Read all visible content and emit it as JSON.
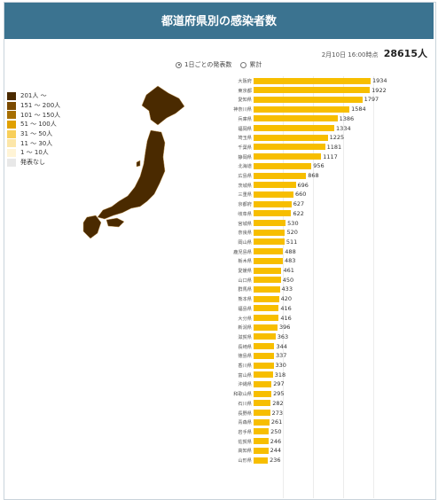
{
  "header": {
    "title": "都道府県別の感染者数"
  },
  "total": {
    "timestamp": "2月10日 16:00時点",
    "value": "28615人"
  },
  "radios": [
    {
      "label": "1日ごとの発表数",
      "selected": true
    },
    {
      "label": "累計",
      "selected": false
    }
  ],
  "legend": [
    {
      "label": "201人 ～",
      "color": "#4a2a00"
    },
    {
      "label": "151 ～ 200人",
      "color": "#7a4a00"
    },
    {
      "label": "101 ～ 150人",
      "color": "#a66e00"
    },
    {
      "label": "51 ～ 100人",
      "color": "#e0a000"
    },
    {
      "label": "31 ～ 50人",
      "color": "#f8cf5a"
    },
    {
      "label": "11 ～ 30人",
      "color": "#fce6a8"
    },
    {
      "label": "1 ～ 10人",
      "color": "#fff4d6"
    },
    {
      "label": "発表なし",
      "color": "#e8e8e8"
    }
  ],
  "colors": {
    "bar": "#f7be00",
    "map_fill": "#4a2a00",
    "header": "#3b7390"
  },
  "chart_data": {
    "type": "bar",
    "orientation": "horizontal",
    "categories": [
      "大阪府",
      "東京都",
      "愛知県",
      "神奈川県",
      "兵庫県",
      "福岡県",
      "埼玉県",
      "千葉県",
      "静岡県",
      "北海道",
      "広島県",
      "茨城県",
      "三重県",
      "京都府",
      "岐阜県",
      "宮城県",
      "奈良県",
      "岡山県",
      "鹿児島県",
      "栃木県",
      "愛媛県",
      "山口県",
      "群馬県",
      "熊本県",
      "福島県",
      "大分県",
      "新潟県",
      "滋賀県",
      "長崎県",
      "徳島県",
      "香川県",
      "富山県",
      "沖縄県",
      "和歌山県",
      "石川県",
      "長野県",
      "青森県",
      "岩手県",
      "佐賀県",
      "高知県",
      "山形県"
    ],
    "values": [
      1934,
      1922,
      1797,
      1584,
      1386,
      1334,
      1225,
      1181,
      1117,
      956,
      868,
      696,
      660,
      627,
      622,
      530,
      520,
      511,
      488,
      483,
      461,
      450,
      433,
      420,
      416,
      416,
      396,
      363,
      344,
      337,
      330,
      318,
      297,
      295,
      282,
      273,
      261,
      250,
      246,
      244,
      236
    ]
  }
}
